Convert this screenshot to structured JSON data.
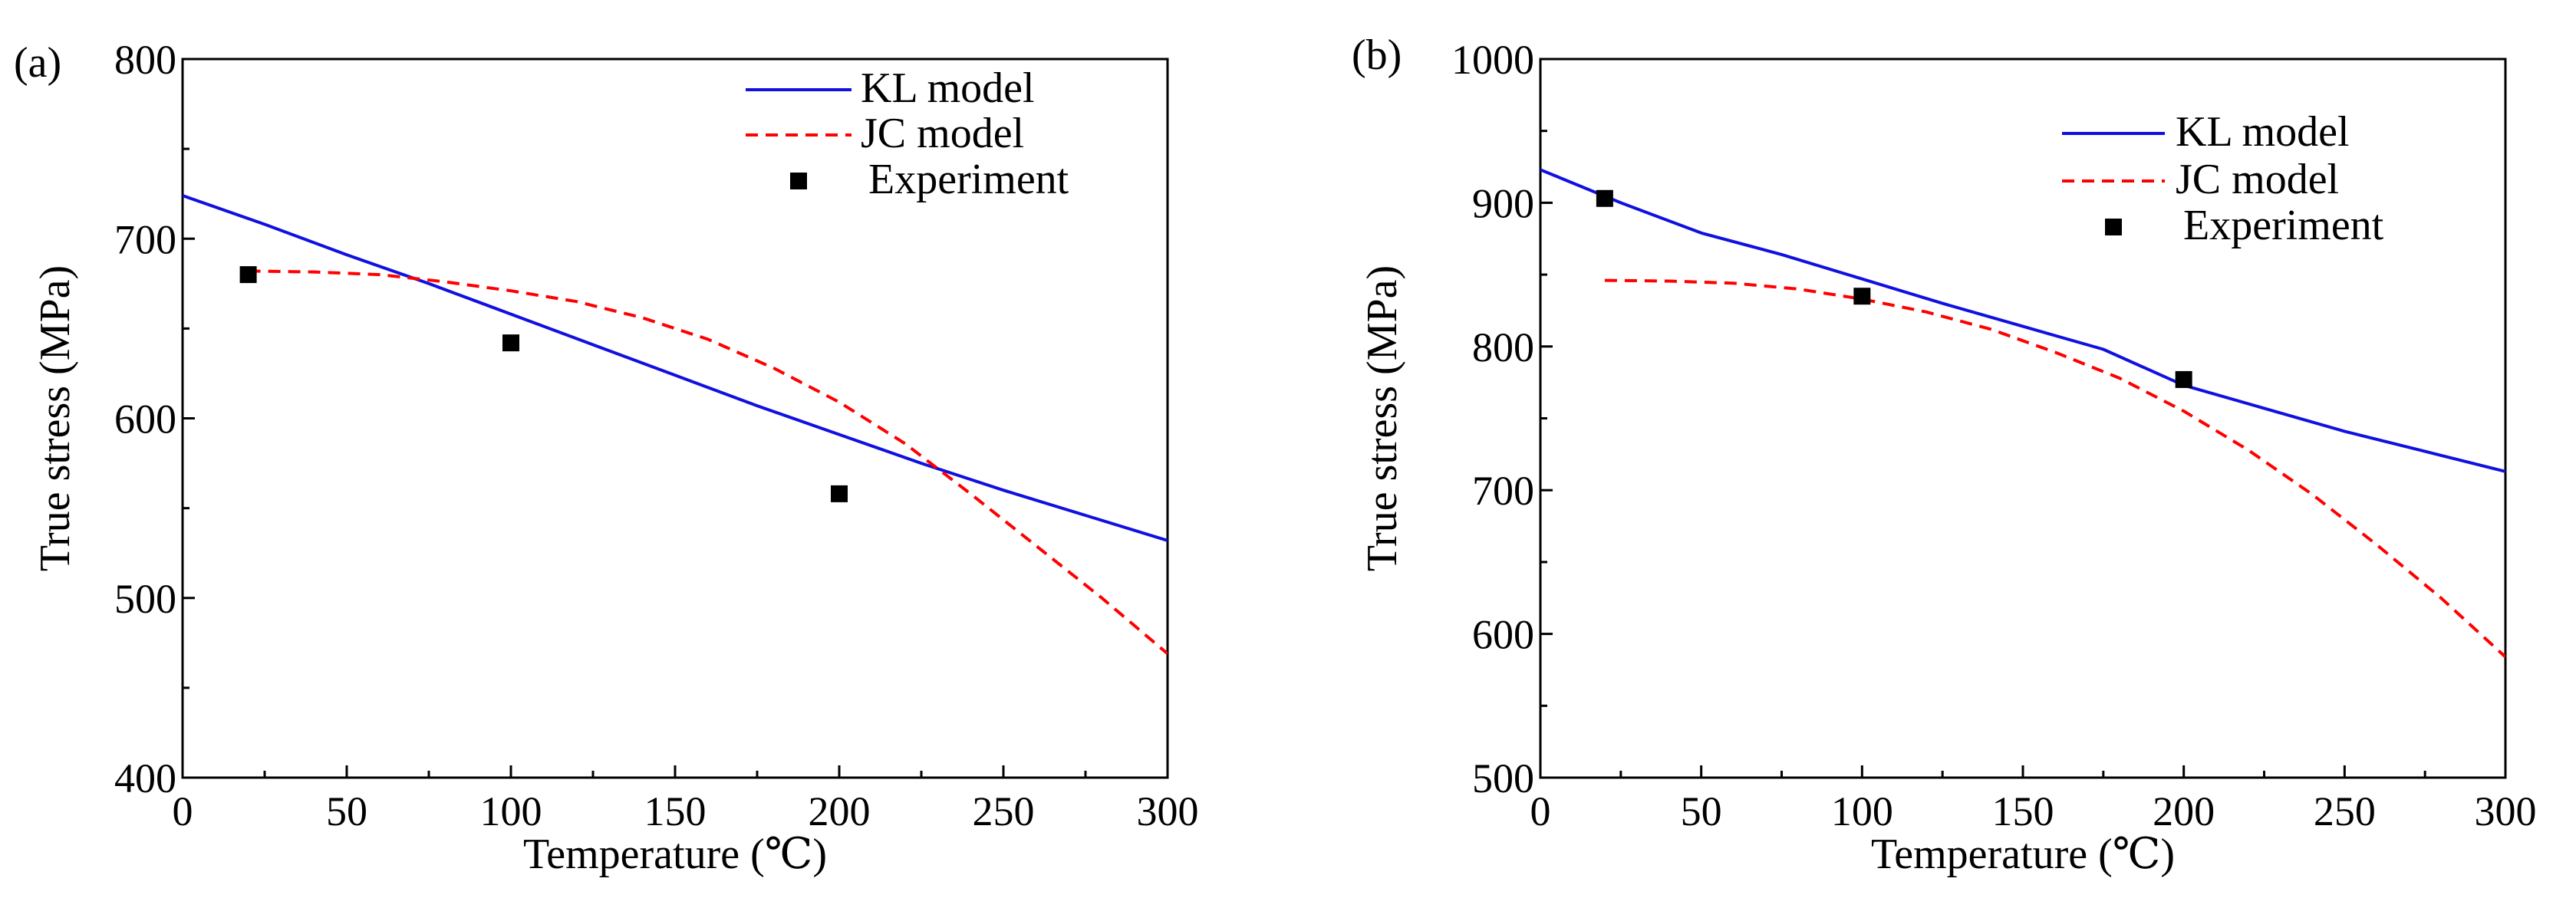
{
  "chart_data": [
    {
      "panel_label": "(a)",
      "type": "line",
      "xlabel": "Temperature (℃)",
      "ylabel": "True stress (MPa)",
      "xlim": [
        0,
        300
      ],
      "ylim": [
        400,
        800
      ],
      "xticks": [
        0,
        50,
        100,
        150,
        200,
        250,
        300
      ],
      "yticks": [
        400,
        500,
        600,
        700,
        800
      ],
      "legend": {
        "position": "top-right",
        "entries": [
          "KL model",
          "JC model",
          "Experiment"
        ]
      },
      "series": [
        {
          "name": "KL model",
          "kind": "line",
          "style": "solid",
          "color": "#1010e0",
          "x": [
            0,
            25,
            50,
            75,
            100,
            125,
            150,
            175,
            200,
            225,
            250,
            275,
            300
          ],
          "y": [
            724,
            708,
            691,
            675,
            658,
            641,
            624,
            607,
            591,
            575,
            560,
            546,
            532
          ]
        },
        {
          "name": "JC model",
          "kind": "line",
          "style": "dashed",
          "color": "#ff0000",
          "x": [
            20,
            40,
            60,
            80,
            100,
            120,
            140,
            160,
            180,
            200,
            220,
            240,
            260,
            280,
            300
          ],
          "y": [
            682,
            681.5,
            680,
            676,
            671,
            665,
            656,
            644,
            628,
            609,
            586,
            558,
            529,
            500,
            469
          ]
        },
        {
          "name": "Experiment",
          "kind": "scatter",
          "marker": "square",
          "color": "#000000",
          "x": [
            20,
            100,
            200
          ],
          "y": [
            680,
            642,
            558
          ]
        }
      ]
    },
    {
      "panel_label": "(b)",
      "type": "line",
      "xlabel": "Temperature (℃)",
      "ylabel": "True stress (MPa)",
      "xlim": [
        0,
        300
      ],
      "ylim": [
        500,
        1000
      ],
      "xticks": [
        0,
        50,
        100,
        150,
        200,
        250,
        300
      ],
      "yticks": [
        500,
        600,
        700,
        800,
        900,
        1000
      ],
      "legend": {
        "position": "top-right",
        "entries": [
          "KL model",
          "JC model",
          "Experiment"
        ]
      },
      "series": [
        {
          "name": "KL model",
          "kind": "line",
          "style": "solid",
          "color": "#1010e0",
          "x": [
            0,
            25,
            50,
            75,
            100,
            125,
            150,
            175,
            200,
            225,
            250,
            275,
            300
          ],
          "y": [
            923,
            900,
            879,
            864,
            847,
            830,
            814,
            798,
            773,
            757,
            741,
            727,
            713
          ]
        },
        {
          "name": "JC model",
          "kind": "line",
          "style": "dashed",
          "color": "#ff0000",
          "x": [
            20,
            40,
            60,
            80,
            100,
            120,
            140,
            160,
            180,
            200,
            220,
            240,
            260,
            280,
            300
          ],
          "y": [
            846,
            845.5,
            844,
            840,
            833,
            824,
            812,
            796,
            778,
            755,
            728,
            697,
            662,
            625,
            584
          ]
        },
        {
          "name": "Experiment",
          "kind": "scatter",
          "marker": "square",
          "color": "#000000",
          "x": [
            20,
            100,
            200
          ],
          "y": [
            903,
            835,
            777
          ]
        }
      ]
    }
  ]
}
